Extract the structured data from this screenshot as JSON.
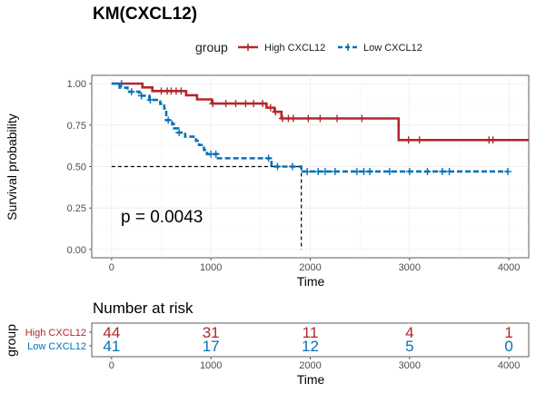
{
  "title": "KM(CXCL12)",
  "legend": {
    "title": "group",
    "items": [
      {
        "label": "High CXCL12",
        "color": "#b2272b"
      },
      {
        "label": "Low CXCL12",
        "color": "#0571b8"
      }
    ]
  },
  "pvalue": "p = 0.0043",
  "risk_table": {
    "title": "Number at risk",
    "ylabel": "group",
    "xlabel": "Time",
    "times": [
      0,
      1000,
      2000,
      3000,
      4000
    ],
    "rows": [
      {
        "label": "High CXCL12",
        "color": "#b2272b",
        "values": [
          44,
          31,
          11,
          4,
          1
        ]
      },
      {
        "label": "Low CXCL12",
        "color": "#0571b8",
        "values": [
          41,
          17,
          12,
          5,
          0
        ]
      }
    ]
  },
  "chart_data": {
    "type": "line",
    "subtype": "kaplan-meier",
    "xlabel": "Time",
    "ylabel": "Survival probability",
    "xlim": [
      -200,
      4200
    ],
    "ylim": [
      -0.05,
      1.05
    ],
    "xticks": [
      0,
      1000,
      2000,
      3000,
      4000
    ],
    "yticks": [
      0.0,
      0.25,
      0.5,
      0.75,
      1.0
    ],
    "ytick_labels": [
      "0.00",
      "0.25",
      "0.50",
      "0.75",
      "1.00"
    ],
    "grid": true,
    "median_line": {
      "y": 0.5,
      "x_end": 1910
    },
    "series": [
      {
        "name": "High CXCL12",
        "color": "#b2272b",
        "dashed": false,
        "steps": [
          [
            0,
            1.0
          ],
          [
            300,
            1.0
          ],
          [
            310,
            0.977
          ],
          [
            400,
            0.977
          ],
          [
            410,
            0.955
          ],
          [
            740,
            0.955
          ],
          [
            750,
            0.93
          ],
          [
            850,
            0.93
          ],
          [
            860,
            0.905
          ],
          [
            1000,
            0.905
          ],
          [
            1010,
            0.88
          ],
          [
            1550,
            0.88
          ],
          [
            1560,
            0.855
          ],
          [
            1630,
            0.855
          ],
          [
            1640,
            0.83
          ],
          [
            1700,
            0.83
          ],
          [
            1710,
            0.79
          ],
          [
            2880,
            0.79
          ],
          [
            2890,
            0.66
          ],
          [
            4200,
            0.66
          ]
        ],
        "censor": [
          [
            500,
            0.955
          ],
          [
            560,
            0.955
          ],
          [
            600,
            0.955
          ],
          [
            650,
            0.955
          ],
          [
            700,
            0.955
          ],
          [
            1020,
            0.88
          ],
          [
            1150,
            0.88
          ],
          [
            1250,
            0.88
          ],
          [
            1350,
            0.88
          ],
          [
            1430,
            0.88
          ],
          [
            1520,
            0.88
          ],
          [
            1600,
            0.855
          ],
          [
            1650,
            0.83
          ],
          [
            1720,
            0.79
          ],
          [
            1780,
            0.79
          ],
          [
            1830,
            0.79
          ],
          [
            1980,
            0.79
          ],
          [
            2100,
            0.79
          ],
          [
            2270,
            0.79
          ],
          [
            2520,
            0.79
          ],
          [
            2990,
            0.66
          ],
          [
            3100,
            0.66
          ],
          [
            3800,
            0.66
          ],
          [
            3840,
            0.66
          ]
        ]
      },
      {
        "name": "Low CXCL12",
        "color": "#0571b8",
        "dashed": true,
        "steps": [
          [
            0,
            1.0
          ],
          [
            70,
            1.0
          ],
          [
            80,
            0.976
          ],
          [
            150,
            0.976
          ],
          [
            160,
            0.951
          ],
          [
            270,
            0.951
          ],
          [
            280,
            0.927
          ],
          [
            370,
            0.927
          ],
          [
            380,
            0.902
          ],
          [
            480,
            0.902
          ],
          [
            490,
            0.878
          ],
          [
            520,
            0.878
          ],
          [
            530,
            0.85
          ],
          [
            540,
            0.85
          ],
          [
            550,
            0.78
          ],
          [
            600,
            0.78
          ],
          [
            610,
            0.755
          ],
          [
            620,
            0.755
          ],
          [
            630,
            0.73
          ],
          [
            660,
            0.73
          ],
          [
            670,
            0.705
          ],
          [
            730,
            0.705
          ],
          [
            740,
            0.68
          ],
          [
            840,
            0.68
          ],
          [
            850,
            0.655
          ],
          [
            870,
            0.655
          ],
          [
            880,
            0.63
          ],
          [
            920,
            0.63
          ],
          [
            930,
            0.6
          ],
          [
            950,
            0.6
          ],
          [
            960,
            0.575
          ],
          [
            1060,
            0.575
          ],
          [
            1070,
            0.55
          ],
          [
            1600,
            0.55
          ],
          [
            1610,
            0.5
          ],
          [
            1900,
            0.5
          ],
          [
            1910,
            0.47
          ],
          [
            3990,
            0.47
          ]
        ],
        "censor": [
          [
            100,
            1.0
          ],
          [
            200,
            0.951
          ],
          [
            300,
            0.927
          ],
          [
            390,
            0.902
          ],
          [
            570,
            0.78
          ],
          [
            680,
            0.705
          ],
          [
            1000,
            0.575
          ],
          [
            1050,
            0.575
          ],
          [
            1580,
            0.55
          ],
          [
            1670,
            0.5
          ],
          [
            1820,
            0.5
          ],
          [
            1970,
            0.47
          ],
          [
            2080,
            0.47
          ],
          [
            2150,
            0.47
          ],
          [
            2250,
            0.47
          ],
          [
            2470,
            0.47
          ],
          [
            2540,
            0.47
          ],
          [
            2600,
            0.47
          ],
          [
            2800,
            0.47
          ],
          [
            3000,
            0.47
          ],
          [
            3180,
            0.47
          ],
          [
            3330,
            0.47
          ],
          [
            3400,
            0.47
          ],
          [
            3990,
            0.47
          ]
        ]
      }
    ]
  }
}
